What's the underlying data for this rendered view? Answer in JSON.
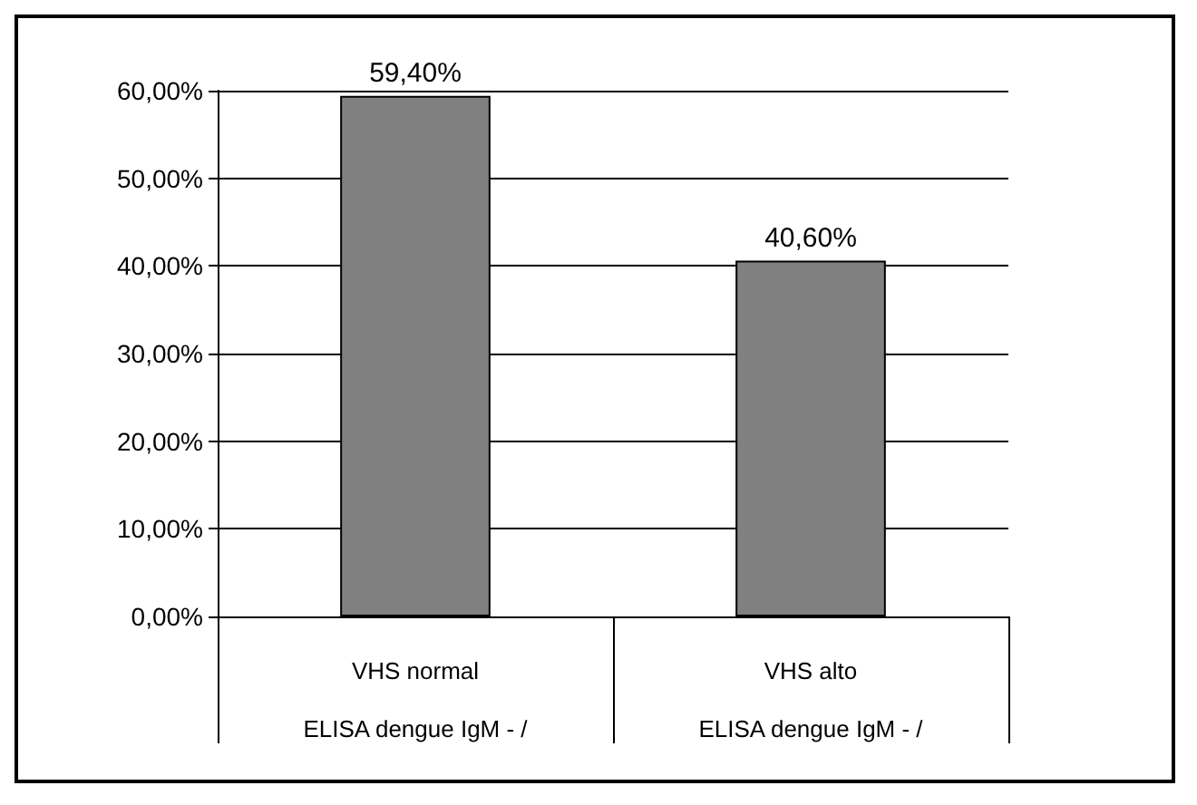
{
  "chart_data": {
    "type": "bar",
    "categories": [
      "VHS normal\n\nELISA dengue IgM - /",
      "VHS alto\n\nELISA dengue IgM - /"
    ],
    "values": [
      59.4,
      40.6
    ],
    "value_labels": [
      "59,40%",
      "40,60%"
    ],
    "color": "#808080",
    "ylim": [
      0,
      60
    ],
    "yticks": [
      {
        "value": 0,
        "label": "0,00%"
      },
      {
        "value": 10,
        "label": "10,00%"
      },
      {
        "value": 20,
        "label": "20,00%"
      },
      {
        "value": 30,
        "label": "30,00%"
      },
      {
        "value": 40,
        "label": "40,00%"
      },
      {
        "value": 50,
        "label": "50,00%"
      },
      {
        "value": 60,
        "label": "60,00%"
      }
    ],
    "grid": "y"
  }
}
